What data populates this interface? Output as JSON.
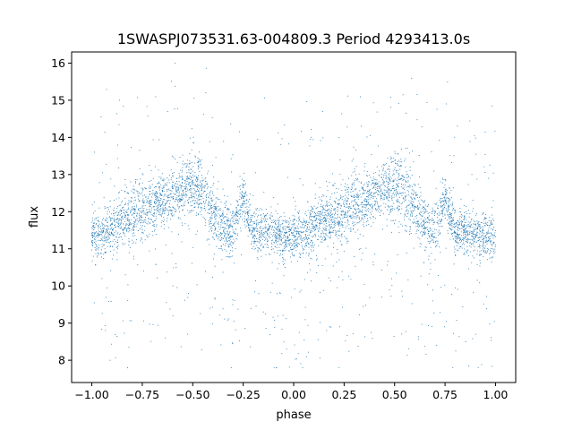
{
  "chart_data": {
    "type": "scatter",
    "title": "1SWASPJ073531.63-004809.3 Period 4293413.0s",
    "xlabel": "phase",
    "ylabel": "flux",
    "xlim": [
      -1.1,
      1.1
    ],
    "ylim": [
      7.4,
      16.3
    ],
    "xticks": [
      {
        "value": -1.0,
        "label": "−1.00"
      },
      {
        "value": -0.75,
        "label": "−0.75"
      },
      {
        "value": -0.5,
        "label": "−0.50"
      },
      {
        "value": -0.25,
        "label": "−0.25"
      },
      {
        "value": 0.0,
        "label": "0.00"
      },
      {
        "value": 0.25,
        "label": "0.25"
      },
      {
        "value": 0.5,
        "label": "0.50"
      },
      {
        "value": 0.75,
        "label": "0.75"
      },
      {
        "value": 1.0,
        "label": "1.00"
      }
    ],
    "yticks": [
      {
        "value": 8,
        "label": "8"
      },
      {
        "value": 9,
        "label": "9"
      },
      {
        "value": 10,
        "label": "10"
      },
      {
        "value": 11,
        "label": "11"
      },
      {
        "value": 12,
        "label": "12"
      },
      {
        "value": 13,
        "label": "13"
      },
      {
        "value": 14,
        "label": "14"
      },
      {
        "value": 15,
        "label": "15"
      },
      {
        "value": 16,
        "label": "16"
      }
    ],
    "grid": false,
    "legend": "none",
    "marker_color": "#1f77b4",
    "series_profile": {
      "phase": [
        -1.0,
        -0.95,
        -0.9,
        -0.85,
        -0.8,
        -0.75,
        -0.7,
        -0.65,
        -0.6,
        -0.55,
        -0.5,
        -0.45,
        -0.4,
        -0.35,
        -0.3,
        -0.25,
        -0.2,
        -0.15,
        -0.1,
        -0.05,
        0.0,
        0.05,
        0.1,
        0.15,
        0.2,
        0.25,
        0.3,
        0.35,
        0.4,
        0.45,
        0.5,
        0.55,
        0.6,
        0.65,
        0.7,
        0.75,
        0.8,
        0.85,
        0.9,
        0.95,
        1.0
      ],
      "median_flux": [
        11.4,
        11.4,
        11.6,
        11.8,
        11.9,
        12.0,
        12.2,
        12.3,
        12.4,
        12.6,
        12.7,
        12.5,
        12.0,
        11.6,
        11.5,
        12.4,
        11.4,
        11.5,
        11.4,
        11.3,
        11.3,
        11.4,
        11.6,
        11.8,
        11.9,
        12.0,
        12.2,
        12.3,
        12.4,
        12.6,
        12.7,
        12.5,
        12.0,
        11.6,
        11.5,
        12.4,
        11.4,
        11.5,
        11.4,
        11.3,
        11.4
      ],
      "scatter": [
        0.6,
        0.5,
        0.6,
        0.6,
        0.7,
        0.7,
        0.7,
        0.6,
        0.6,
        0.7,
        0.8,
        0.8,
        0.7,
        0.6,
        0.6,
        0.5,
        0.5,
        0.5,
        0.5,
        0.5,
        0.5,
        0.5,
        0.6,
        0.6,
        0.7,
        0.7,
        0.7,
        0.6,
        0.6,
        0.7,
        0.8,
        0.8,
        0.7,
        0.6,
        0.6,
        0.5,
        0.5,
        0.5,
        0.5,
        0.5,
        0.6
      ]
    },
    "min_flux": 7.8,
    "max_flux": 16.0
  }
}
